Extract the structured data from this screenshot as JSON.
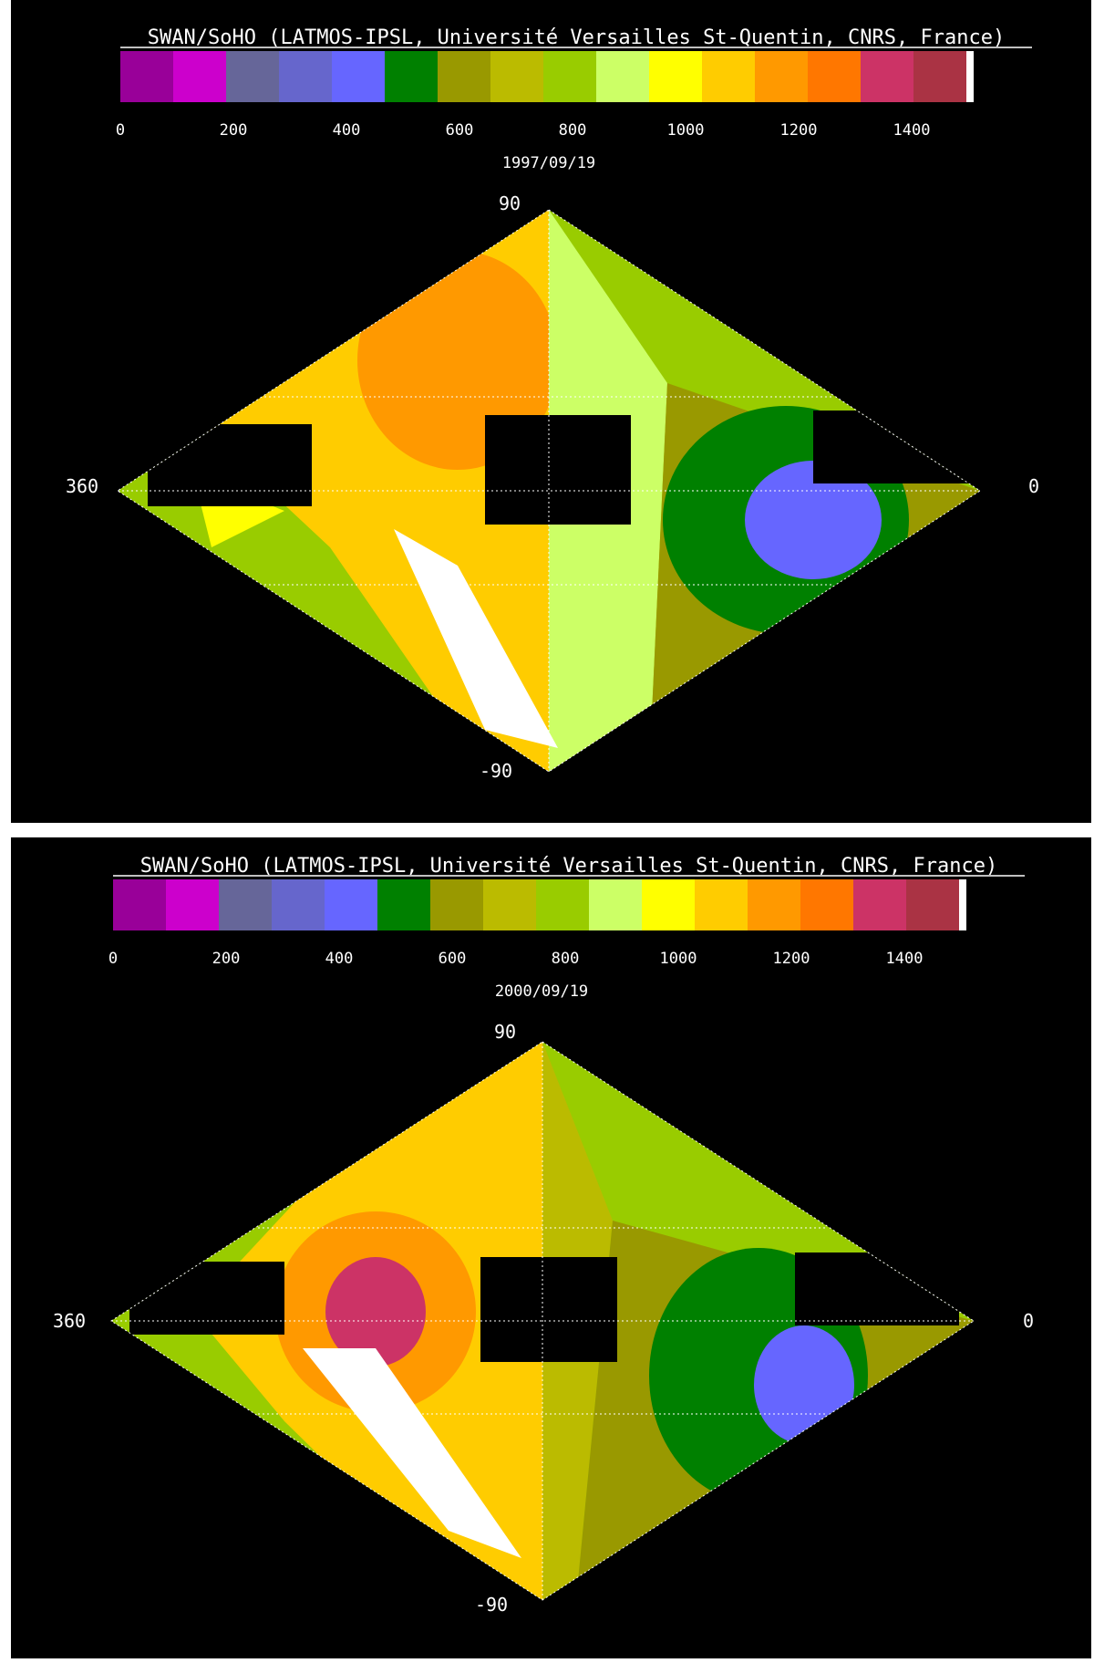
{
  "colors": {
    "background": "#000000",
    "text": "#ffffff",
    "grid": "#ffffff",
    "scale": [
      "#990099",
      "#cc00cc",
      "#666699",
      "#6666cc",
      "#6666ff",
      "#008000",
      "#999900",
      "#bbbb00",
      "#99cc00",
      "#ccff66",
      "#ffff00",
      "#ffcc00",
      "#ff9900",
      "#ff7700",
      "#cc3366",
      "#aa3344",
      "#ffffff"
    ]
  },
  "panels": [
    {
      "credit": "SWAN/SoHO (LATMOS-IPSL, Université Versailles St-Quentin, CNRS, France)",
      "date": "1997/09/19",
      "scale_ticks": [
        "0",
        "200",
        "400",
        "600",
        "800",
        "1000",
        "1200",
        "1400"
      ],
      "lat_top": "90",
      "lat_bottom": "-90",
      "lon_left": "360",
      "lon_right": "0"
    },
    {
      "credit": "SWAN/SoHO (LATMOS-IPSL, Université Versailles St-Quentin, CNRS, France)",
      "date": "2000/09/19",
      "scale_ticks": [
        "0",
        "200",
        "400",
        "600",
        "800",
        "1000",
        "1200",
        "1400"
      ],
      "lat_top": "90",
      "lat_bottom": "-90",
      "lon_left": "360",
      "lon_right": "0"
    }
  ],
  "map_legend": {
    "scale_min": 0,
    "scale_max": 1500,
    "bin_width": 93.75,
    "projection": "sinusoidal",
    "missing_data": "black"
  }
}
